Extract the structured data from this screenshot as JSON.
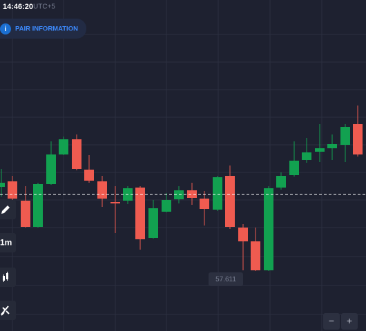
{
  "header": {
    "time": "14:46:20",
    "timezone": "UTC+5"
  },
  "pair_button": {
    "icon": "i",
    "label": "PAIR INFORMATION"
  },
  "price_label": "57.611",
  "toolbar": {
    "timeframe": "1m"
  },
  "zoom": {
    "out": "−",
    "in": "+"
  }
}
